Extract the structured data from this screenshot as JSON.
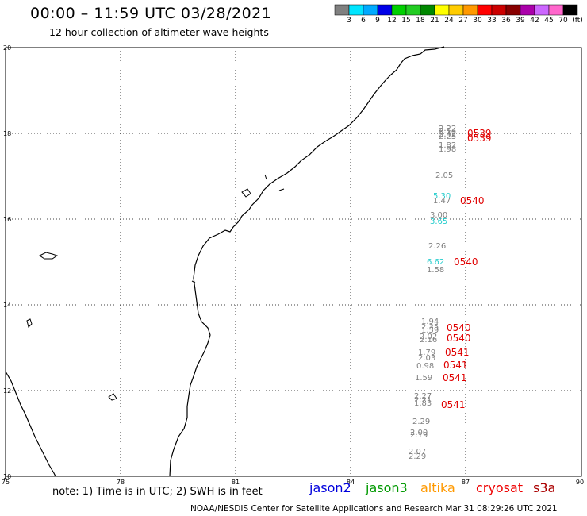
{
  "header": {
    "title": "00:00 – 11:59 UTC 03/28/2021",
    "subtitle": "12 hour collection of altimeter wave heights"
  },
  "colorbar": {
    "swatches": [
      "#808080",
      "#00e5ff",
      "#00aaff",
      "#0000e8",
      "#00d000",
      "#22cc22",
      "#008800",
      "#ffff00",
      "#ffcc00",
      "#ff9900",
      "#ff0000",
      "#cc0000",
      "#880000",
      "#aa00aa",
      "#cc66ff",
      "#ff66cc",
      "#000000"
    ],
    "labels": [
      "3",
      "6",
      "9",
      "12",
      "15",
      "18",
      "21",
      "24",
      "27",
      "30",
      "33",
      "36",
      "39",
      "42",
      "45",
      "70",
      "(ft)"
    ]
  },
  "axes": {
    "x_ticks": [
      "75",
      "78",
      "81",
      "84",
      "87",
      "90"
    ],
    "y_ticks": [
      "20",
      "18",
      "16",
      "14",
      "12",
      "10"
    ]
  },
  "observations": [
    {
      "text": "2.22",
      "color": "#808080"
    },
    {
      "text": "2.14",
      "color": "#808080"
    },
    {
      "text": "2.42",
      "color": "#808080"
    },
    {
      "text": "2.25",
      "color": "#808080"
    },
    {
      "text": "1.82",
      "color": "#808080"
    },
    {
      "text": "1.98",
      "color": "#808080"
    },
    {
      "text": "2.05",
      "color": "#808080"
    },
    {
      "text": "5.30",
      "color": "#22cccc"
    },
    {
      "text": "1.47",
      "color": "#808080"
    },
    {
      "text": "3.00",
      "color": "#808080"
    },
    {
      "text": "3.65",
      "color": "#22cccc"
    },
    {
      "text": "2.26",
      "color": "#808080"
    },
    {
      "text": "6.62",
      "color": "#22cccc"
    },
    {
      "text": "1.58",
      "color": "#808080"
    },
    {
      "text": "1.94",
      "color": "#808080"
    },
    {
      "text": "2.35",
      "color": "#808080"
    },
    {
      "text": "1.59",
      "color": "#808080"
    },
    {
      "text": "2.02",
      "color": "#808080"
    },
    {
      "text": "2.16",
      "color": "#808080"
    },
    {
      "text": "1.79",
      "color": "#808080"
    },
    {
      "text": "2.03",
      "color": "#808080"
    },
    {
      "text": "0.98",
      "color": "#808080"
    },
    {
      "text": "1.59",
      "color": "#808080"
    },
    {
      "text": "2.27",
      "color": "#808080"
    },
    {
      "text": "2.21",
      "color": "#808080"
    },
    {
      "text": "1.83",
      "color": "#808080"
    },
    {
      "text": "2.29",
      "color": "#808080"
    },
    {
      "text": "2.00",
      "color": "#808080"
    },
    {
      "text": "2.19",
      "color": "#808080"
    },
    {
      "text": "2.07",
      "color": "#808080"
    },
    {
      "text": "2.29",
      "color": "#808080"
    }
  ],
  "pass_times": [
    "0539",
    "0539",
    "0540",
    "0540",
    "0540",
    "0540",
    "0541",
    "0541",
    "0541",
    "0541"
  ],
  "footer": {
    "note": "note: 1) Time is in UTC; 2) SWH is in feet",
    "satellites": [
      {
        "name": "jason2",
        "color": "#0000dd"
      },
      {
        "name": "jason3",
        "color": "#009900"
      },
      {
        "name": "altika",
        "color": "#ff9900"
      },
      {
        "name": "cryosat",
        "color": "#ee0000"
      },
      {
        "name": "s3a",
        "color": "#aa0000"
      }
    ],
    "credit": "NOAA/NESDIS Center for Satellite Applications and Research   Mar 31 08:29:26 UTC 2021"
  }
}
